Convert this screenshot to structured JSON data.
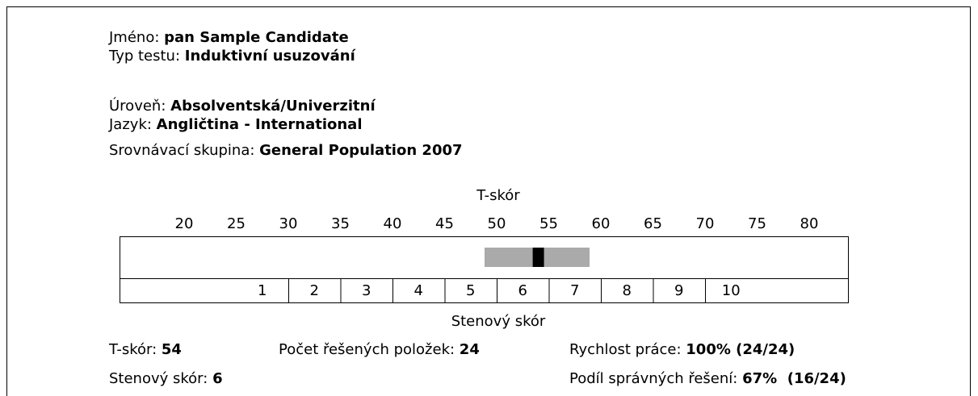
{
  "candidate": {
    "name_label": "Jméno:",
    "name": "pan Sample Candidate",
    "test_label": "Typ testu:",
    "test": "Induktivní usuzování"
  },
  "settings": {
    "level_label": "Úroveň:",
    "level": "Absolventská/Univerzitní",
    "language_label": "Jazyk:",
    "language": "Angličtina - International",
    "norm_label": "Srovnávací skupina:",
    "norm": "General Population 2007"
  },
  "t_scale": {
    "title": "T-skór",
    "ticks": [
      20,
      25,
      30,
      35,
      40,
      45,
      50,
      55,
      60,
      65,
      70,
      75,
      80
    ]
  },
  "sten_scale": {
    "title": "Stenový skór",
    "ticks": [
      1,
      2,
      3,
      4,
      5,
      6,
      7,
      8,
      9,
      10
    ]
  },
  "results": {
    "t_score": {
      "label": "T-skór:",
      "value": 54
    },
    "items": {
      "label": "Počet řešených položek:",
      "value": 24
    },
    "speed": {
      "label": "Rychlost práce:",
      "value": "100% (24/24)"
    },
    "sten": {
      "label": "Stenový skór:",
      "value": 6
    },
    "accuracy": {
      "label": "Podíl správných řešení:",
      "value": "67%  (16/24)"
    }
  }
}
